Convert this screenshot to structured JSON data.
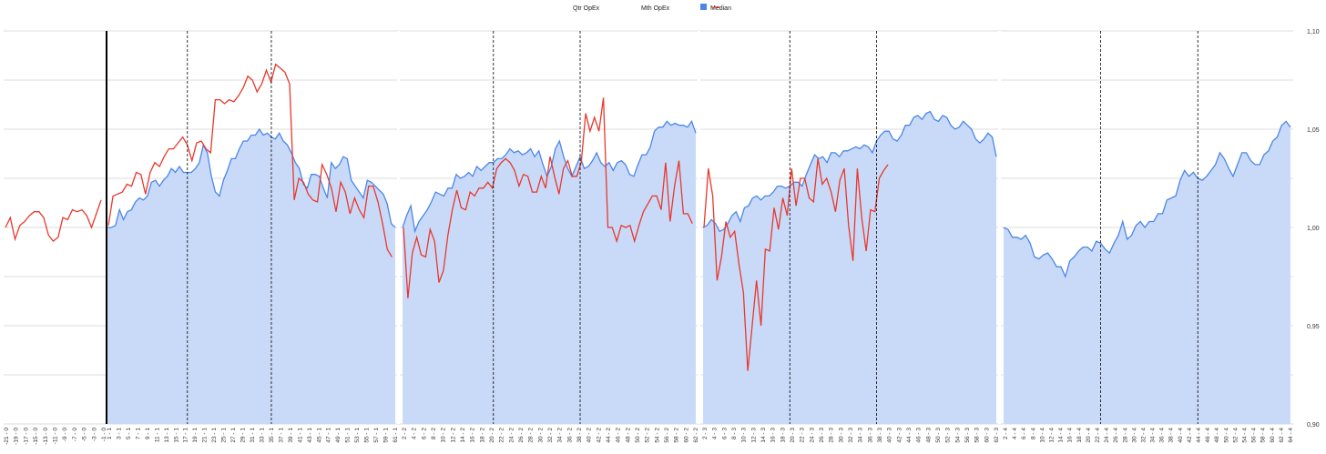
{
  "legend": {
    "items": [
      {
        "label": "Qtr OpEx",
        "marker": "none"
      },
      {
        "label": "Mth OpEx",
        "marker": "none"
      },
      {
        "label": "Median",
        "marker": "square",
        "color": "#4a86e8"
      },
      {
        "label": "",
        "marker": "line",
        "color": "#e8382c"
      }
    ]
  },
  "colors": {
    "area_fill": "#c9daf8",
    "area_line": "#4a86e8",
    "red_line": "#e8382c",
    "grid": "#d0d0d0",
    "axis_text": "#333333"
  },
  "chart_data": {
    "type": "line",
    "ylim": [
      0.9,
      1.1
    ],
    "y_ticks": [
      "1,10",
      "1,05",
      "1,00",
      "0,95",
      "0,90"
    ],
    "y_tick_values": [
      1.1,
      1.05,
      1.0,
      0.95,
      0.9
    ],
    "legend_position": "top-center",
    "segments": [
      {
        "tick_labels": [
          "-21 - 0",
          "-19 - 0",
          "-17 - 0",
          "-15 - 0",
          "-13 - 0",
          "-11 - 0",
          "-9 - 0",
          "-7 - 0",
          "-5 - 0",
          "-3 - 0",
          "-1 - 0"
        ],
        "blue": [],
        "red": [
          1.0,
          1.005,
          0.994,
          1.001,
          1.003,
          1.006,
          1.008,
          1.008,
          1.005,
          0.996,
          0.993,
          0.995,
          1.005,
          1.004,
          1.009,
          1.008,
          1.009,
          1.006,
          1.0,
          1.007,
          1.014
        ],
        "red_offset": 0,
        "quarters": []
      },
      {
        "tick_labels": [
          "1 - 1",
          "3 - 1",
          "5 - 1",
          "7 - 1",
          "9 - 1",
          "11 - 1",
          "13 - 1",
          "15 - 1",
          "17 - 1",
          "19 - 1",
          "21 - 1",
          "23 - 1",
          "25 - 1",
          "27 - 1",
          "29 - 1",
          "31 - 1",
          "33 - 1",
          "35 - 1",
          "37 - 1",
          "39 - 1",
          "41 - 1",
          "43 - 1",
          "45 - 1",
          "47 - 1",
          "49 - 1",
          "51 - 1",
          "53 - 1",
          "55 - 1",
          "57 - 1",
          "59 - 1",
          "61 - 1"
        ],
        "blue": [
          1.0,
          1.0,
          1.001,
          1.009,
          1.004,
          1.008,
          1.009,
          1.013,
          1.015,
          1.014,
          1.016,
          1.023,
          1.024,
          1.021,
          1.024,
          1.026,
          1.03,
          1.028,
          1.031,
          1.028,
          1.028,
          1.028,
          1.03,
          1.033,
          1.042,
          1.038,
          1.026,
          1.018,
          1.016,
          1.024,
          1.029,
          1.035,
          1.035,
          1.04,
          1.044,
          1.044,
          1.047,
          1.047,
          1.05,
          1.047,
          1.048,
          1.046,
          1.045,
          1.048,
          1.044,
          1.042,
          1.038,
          1.033,
          1.03,
          1.022,
          1.02,
          1.027,
          1.027,
          1.026,
          1.02,
          1.015,
          1.033,
          1.03,
          1.032,
          1.036,
          1.035,
          1.024,
          1.021,
          1.018,
          1.015,
          1.024,
          1.023,
          1.021,
          1.019,
          1.017,
          1.012,
          1.002,
          1.0
        ],
        "red": [
          1.001,
          1.016,
          1.017,
          1.018,
          1.022,
          1.021,
          1.028,
          1.027,
          1.017,
          1.028,
          1.033,
          1.031,
          1.036,
          1.04,
          1.04,
          1.043,
          1.046,
          1.042,
          1.034,
          1.043,
          1.044,
          1.04,
          1.038,
          1.065,
          1.065,
          1.063,
          1.065,
          1.064,
          1.067,
          1.071,
          1.077,
          1.075,
          1.069,
          1.073,
          1.08,
          1.074,
          1.083,
          1.081,
          1.079,
          1.073,
          1.014,
          1.025,
          1.023,
          1.017,
          1.014,
          1.013,
          1.032,
          1.027,
          1.02,
          1.008,
          1.023,
          1.018,
          1.007,
          1.015,
          1.009,
          1.005,
          1.021,
          1.021,
          1.013,
          1.002,
          0.989,
          0.985
        ],
        "red_offset": 0,
        "quarters": [
          20,
          41
        ]
      },
      {
        "tick_labels": [
          "2 - 2",
          "4 - 2",
          "6 - 2",
          "8 - 2",
          "10 - 2",
          "12 - 2",
          "14 - 2",
          "16 - 2",
          "18 - 2",
          "20 - 2",
          "22 - 2",
          "24 - 2",
          "26 - 2",
          "28 - 2",
          "30 - 2",
          "32 - 2",
          "34 - 2",
          "36 - 2",
          "38 - 2",
          "40 - 2",
          "42 - 2",
          "44 - 2",
          "46 - 2",
          "48 - 2",
          "50 - 2",
          "52 - 2",
          "54 - 2",
          "56 - 2",
          "58 - 2",
          "60 - 2",
          "62 - 2"
        ],
        "blue": [
          1.0,
          1.006,
          1.011,
          0.998,
          1.003,
          1.006,
          1.009,
          1.013,
          1.018,
          1.017,
          1.016,
          1.02,
          1.02,
          1.027,
          1.025,
          1.026,
          1.028,
          1.026,
          1.031,
          1.029,
          1.031,
          1.033,
          1.033,
          1.035,
          1.035,
          1.037,
          1.04,
          1.038,
          1.039,
          1.037,
          1.038,
          1.04,
          1.036,
          1.039,
          1.032,
          1.026,
          1.031,
          1.04,
          1.044,
          1.036,
          1.03,
          1.026,
          1.031,
          1.036,
          1.03,
          1.031,
          1.034,
          1.038,
          1.033,
          1.031,
          1.033,
          1.029,
          1.033,
          1.034,
          1.032,
          1.027,
          1.026,
          1.032,
          1.037,
          1.037,
          1.041,
          1.049,
          1.051,
          1.051,
          1.054,
          1.052,
          1.053,
          1.052,
          1.052,
          1.051,
          1.054,
          1.048
        ],
        "red": [
          1.0,
          0.964,
          0.987,
          0.995,
          0.986,
          0.985,
          0.999,
          0.993,
          0.972,
          0.978,
          0.996,
          1.009,
          1.019,
          1.01,
          1.009,
          1.018,
          1.016,
          1.02,
          1.02,
          1.023,
          1.02,
          1.03,
          1.033,
          1.035,
          1.033,
          1.029,
          1.021,
          1.027,
          1.026,
          1.018,
          1.018,
          1.026,
          1.02,
          1.036,
          1.026,
          1.017,
          1.03,
          1.034,
          1.026,
          1.026,
          1.033,
          1.058,
          1.049,
          1.056,
          1.049,
          1.066,
          1.0,
          1.0,
          0.993,
          1.001,
          1.0,
          1.001,
          0.993,
          1.001,
          1.008,
          1.012,
          1.016,
          1.016,
          1.009,
          1.033,
          1.003,
          1.021,
          1.034,
          1.007,
          1.007,
          1.002
        ],
        "red_offset": 0,
        "quarters": [
          22,
          43
        ]
      },
      {
        "tick_labels": [
          "2 - 3",
          "4 - 3",
          "6 - 3",
          "8 - 3",
          "10 - 3",
          "12 - 3",
          "14 - 3",
          "16 - 3",
          "18 - 3",
          "20 - 3",
          "22 - 3",
          "24 - 3",
          "26 - 3",
          "28 - 3",
          "30 - 3",
          "32 - 3",
          "34 - 3",
          "36 - 3",
          "38 - 3",
          "40 - 3",
          "42 - 3",
          "44 - 3",
          "46 - 3",
          "48 - 3",
          "50 - 3",
          "52 - 3",
          "54 - 3",
          "56 - 3",
          "58 - 3",
          "60 - 3",
          "62 - 3"
        ],
        "blue": [
          1.0,
          1.001,
          1.004,
          1.002,
          0.998,
          0.999,
          1.002,
          1.006,
          1.008,
          1.003,
          1.01,
          1.011,
          1.015,
          1.016,
          1.014,
          1.016,
          1.016,
          1.018,
          1.021,
          1.021,
          1.02,
          1.021,
          1.023,
          1.023,
          1.021,
          1.027,
          1.032,
          1.037,
          1.035,
          1.036,
          1.033,
          1.038,
          1.038,
          1.036,
          1.039,
          1.039,
          1.04,
          1.041,
          1.04,
          1.042,
          1.041,
          1.038,
          1.044,
          1.047,
          1.049,
          1.049,
          1.045,
          1.044,
          1.047,
          1.052,
          1.052,
          1.056,
          1.057,
          1.055,
          1.058,
          1.059,
          1.055,
          1.054,
          1.057,
          1.056,
          1.052,
          1.05,
          1.051,
          1.054,
          1.052,
          1.05,
          1.045,
          1.043,
          1.045,
          1.048,
          1.046,
          1.036
        ],
        "red": [
          1.0,
          1.03,
          1.016,
          0.973,
          0.985,
          1.003,
          0.995,
          0.998,
          0.981,
          0.967,
          0.927,
          0.95,
          0.973,
          0.95,
          0.989,
          0.988,
          1.01,
          0.999,
          1.015,
          1.006,
          1.03,
          1.011,
          1.025,
          1.025,
          1.015,
          1.013,
          1.035,
          1.022,
          1.025,
          1.018,
          1.008,
          1.024,
          1.03,
          1.001,
          0.983,
          1.03,
          1.005,
          0.988,
          1.009,
          1.008,
          1.025,
          1.029,
          1.032
        ],
        "red_offset": 0,
        "quarters": [
          21,
          42
        ]
      },
      {
        "tick_labels": [
          "2 - 4",
          "4 - 4",
          "6 - 4",
          "8 - 4",
          "10 - 4",
          "12 - 4",
          "14 - 4",
          "16 - 4",
          "18 - 4",
          "20 - 4",
          "22 - 4",
          "24 - 4",
          "26 - 4",
          "28 - 4",
          "30 - 4",
          "32 - 4",
          "34 - 4",
          "36 - 4",
          "38 - 4",
          "40 - 4",
          "42 - 4",
          "44 - 4",
          "46 - 4",
          "48 - 4",
          "50 - 4",
          "52 - 4",
          "54 - 4",
          "56 - 4",
          "58 - 4",
          "60 - 4",
          "62 - 4",
          "64 - 4"
        ],
        "blue": [
          1.0,
          0.999,
          0.995,
          0.995,
          0.994,
          0.996,
          0.992,
          0.985,
          0.984,
          0.986,
          0.987,
          0.984,
          0.98,
          0.98,
          0.975,
          0.983,
          0.985,
          0.988,
          0.99,
          0.99,
          0.988,
          0.993,
          0.992,
          0.989,
          0.987,
          0.992,
          0.996,
          1.003,
          0.994,
          0.996,
          1.001,
          1.003,
          1.0,
          1.003,
          1.003,
          1.007,
          1.007,
          1.014,
          1.015,
          1.016,
          1.024,
          1.029,
          1.026,
          1.028,
          1.025,
          1.024,
          1.026,
          1.029,
          1.032,
          1.038,
          1.035,
          1.03,
          1.026,
          1.032,
          1.038,
          1.038,
          1.034,
          1.032,
          1.032,
          1.037,
          1.039,
          1.044,
          1.046,
          1.052,
          1.054,
          1.051
        ],
        "red": [],
        "red_offset": 0,
        "quarters": [
          22,
          44
        ]
      }
    ]
  }
}
